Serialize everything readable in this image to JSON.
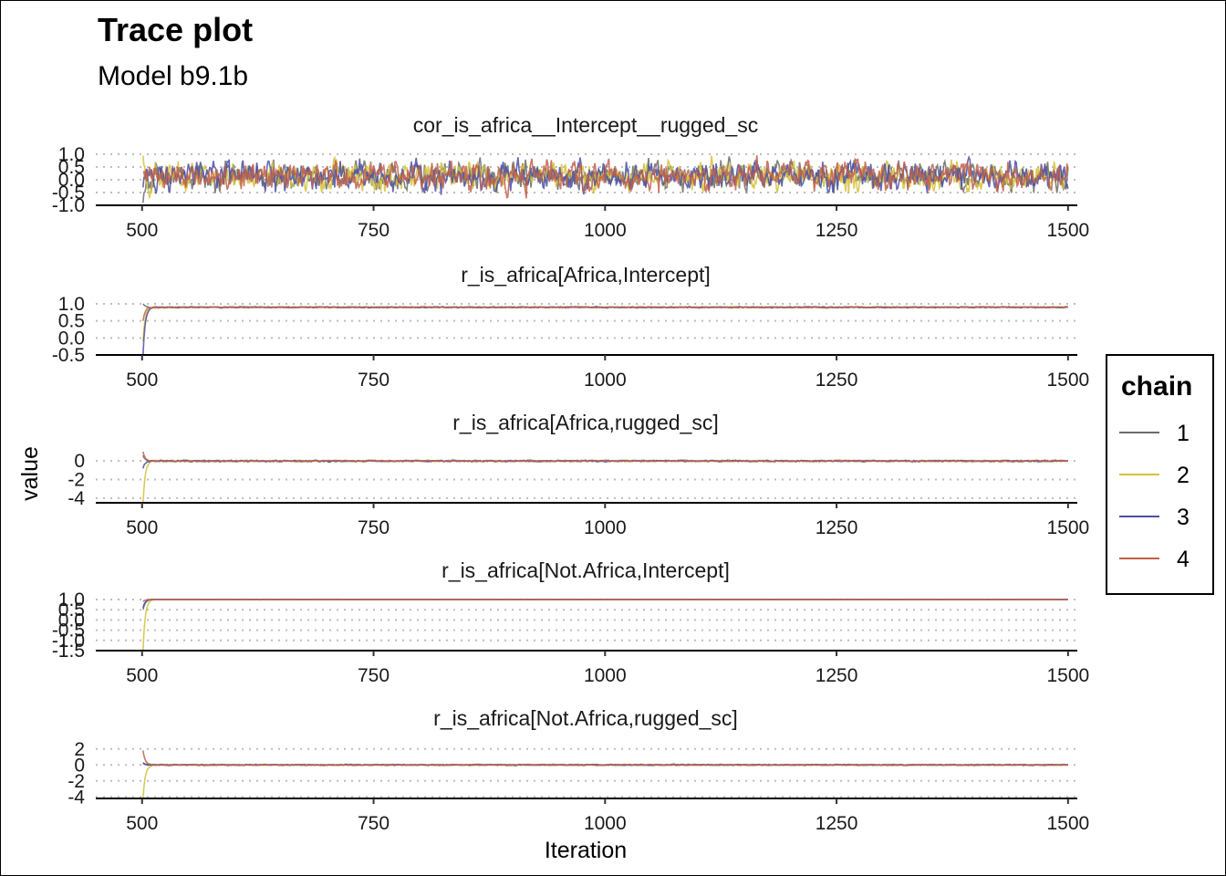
{
  "title": "Trace plot",
  "subtitle": "Model b9.1b",
  "chart_data": {
    "type": "line",
    "xlabel": "Iteration",
    "ylabel": "value",
    "xlim": [
      450,
      1510
    ],
    "x_ticks": [
      500,
      750,
      1000,
      1250,
      1500
    ],
    "grid": "horizontal dotted",
    "legend": {
      "title": "chain",
      "placement": "right",
      "entries": [
        "1",
        "2",
        "3",
        "4"
      ]
    },
    "series_colors": {
      "1": "#6b6b6b",
      "2": "#d4c23a",
      "3": "#4a4fa3",
      "4": "#c0604a"
    },
    "iterations": [
      501,
      1500
    ],
    "panels": [
      {
        "label": "cor_is_africa__Intercept__rugged_sc",
        "ylim": [
          -1.0,
          1.0
        ],
        "y_ticks": [
          1.0,
          0.5,
          0.0,
          -0.5,
          -1.0
        ],
        "y_tick_labels": [
          "1.0",
          "0.5",
          "0.0",
          "-0.5",
          "-1.0"
        ],
        "chains": [
          {
            "chain": "1",
            "start": -0.9,
            "mean": 0.15,
            "sd": 0.42
          },
          {
            "chain": "2",
            "start": 0.95,
            "mean": 0.15,
            "sd": 0.42
          },
          {
            "chain": "3",
            "start": -0.3,
            "mean": 0.15,
            "sd": 0.42
          },
          {
            "chain": "4",
            "start": 0.3,
            "mean": 0.15,
            "sd": 0.42
          }
        ]
      },
      {
        "label": "r_is_africa[Africa,Intercept]",
        "ylim": [
          -0.5,
          1.0
        ],
        "y_ticks": [
          1.0,
          0.5,
          0.0,
          -0.5
        ],
        "y_tick_labels": [
          "1.0",
          "0.5",
          "0.0",
          "-0.5"
        ],
        "chains": [
          {
            "chain": "1",
            "start": 1.1,
            "mean": 0.9,
            "sd": 0.012
          },
          {
            "chain": "2",
            "start": -0.1,
            "mean": 0.9,
            "sd": 0.012
          },
          {
            "chain": "3",
            "start": -0.5,
            "mean": 0.9,
            "sd": 0.012
          },
          {
            "chain": "4",
            "start": 0.5,
            "mean": 0.9,
            "sd": 0.012
          }
        ]
      },
      {
        "label": "r_is_africa[Africa,rugged_sc]",
        "ylim": [
          -4.5,
          1.0
        ],
        "y_ticks": [
          0,
          -2,
          -4
        ],
        "y_tick_labels": [
          "0",
          "-2",
          "-4"
        ],
        "chains": [
          {
            "chain": "1",
            "start": 0.6,
            "mean": 0.0,
            "sd": 0.06
          },
          {
            "chain": "2",
            "start": -4.5,
            "mean": 0.0,
            "sd": 0.06
          },
          {
            "chain": "3",
            "start": -0.8,
            "mean": 0.0,
            "sd": 0.06
          },
          {
            "chain": "4",
            "start": 1.0,
            "mean": 0.0,
            "sd": 0.06
          }
        ]
      },
      {
        "label": "r_is_africa[Not.Africa,Intercept]",
        "ylim": [
          -1.5,
          1.0
        ],
        "y_ticks": [
          1.0,
          0.5,
          0.0,
          -0.5,
          -1.0,
          -1.5
        ],
        "y_tick_labels": [
          "1.0",
          "0.5",
          "0.0",
          "-0.5",
          "-1.0",
          "-1.5"
        ],
        "chains": [
          {
            "chain": "1",
            "start": 0.5,
            "mean": 1.0,
            "sd": 0.006
          },
          {
            "chain": "2",
            "start": -1.5,
            "mean": 1.0,
            "sd": 0.006
          },
          {
            "chain": "3",
            "start": 0.6,
            "mean": 1.0,
            "sd": 0.006
          },
          {
            "chain": "4",
            "start": 0.9,
            "mean": 1.0,
            "sd": 0.006
          }
        ]
      },
      {
        "label": "r_is_africa[Not.Africa,rugged_sc]",
        "ylim": [
          -4.2,
          2.2
        ],
        "y_ticks": [
          2,
          0,
          -2,
          -4
        ],
        "y_tick_labels": [
          "2",
          "0",
          "-2",
          "-4"
        ],
        "chains": [
          {
            "chain": "1",
            "start": 0.3,
            "mean": 0.0,
            "sd": 0.05
          },
          {
            "chain": "2",
            "start": -4.2,
            "mean": 0.0,
            "sd": 0.05
          },
          {
            "chain": "3",
            "start": 0.2,
            "mean": 0.0,
            "sd": 0.05
          },
          {
            "chain": "4",
            "start": 1.8,
            "mean": 0.0,
            "sd": 0.05
          }
        ]
      }
    ]
  }
}
